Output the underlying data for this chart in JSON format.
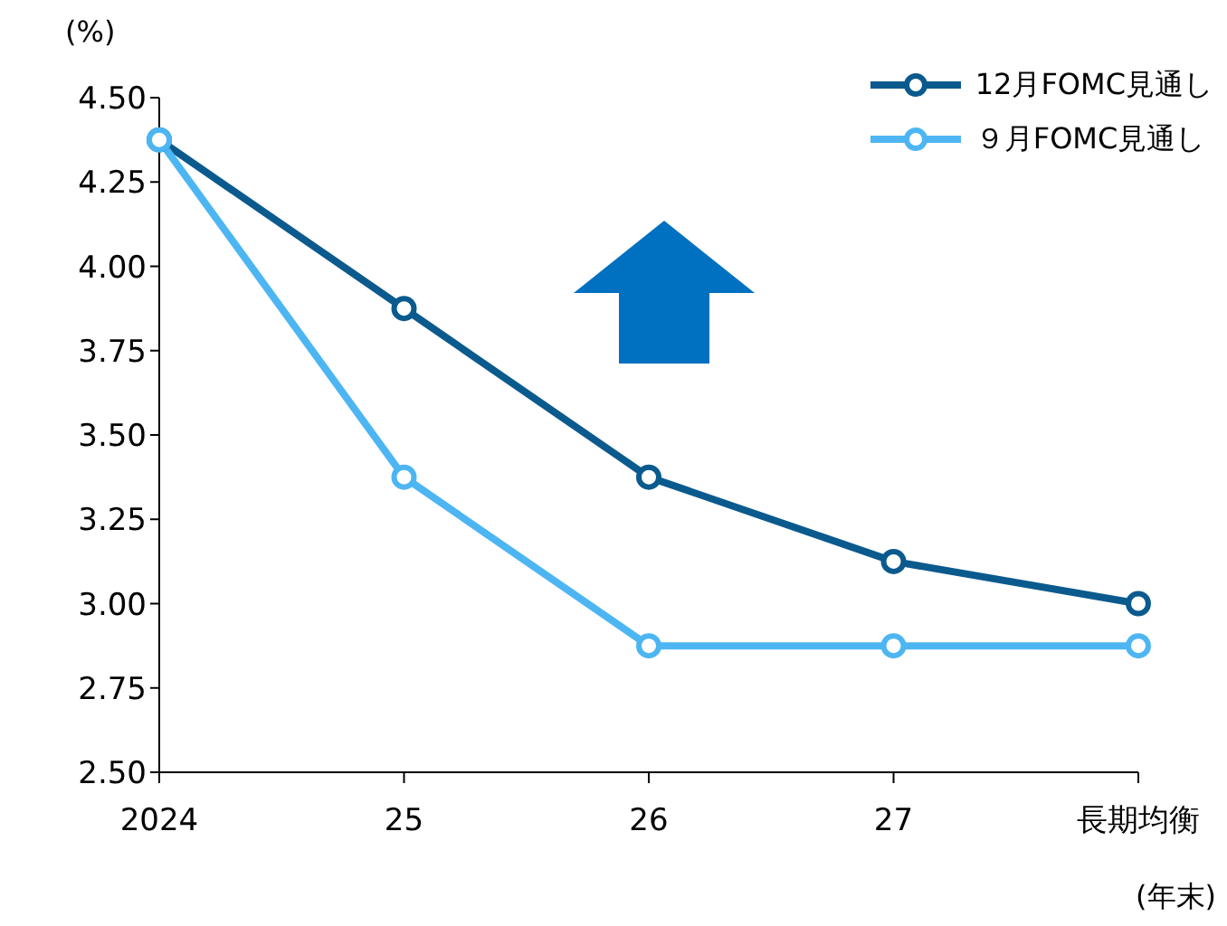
{
  "chart_data": {
    "type": "line",
    "ylabel": "(%)",
    "xlabel": "(年末)",
    "categories": [
      "2024",
      "25",
      "26",
      "27",
      "長期均衡"
    ],
    "series": [
      {
        "name": "12月FOMC見通し",
        "color": "#0b5a8e",
        "values": [
          4.375,
          3.875,
          3.375,
          3.125,
          3.0
        ]
      },
      {
        "name": "９月FOMC見通し",
        "color": "#4db6f2",
        "values": [
          4.375,
          3.375,
          2.875,
          2.875,
          2.875
        ]
      }
    ],
    "ylim": [
      2.5,
      4.5
    ],
    "yticks": [
      {
        "value": 2.5,
        "label": "2.50"
      },
      {
        "value": 2.75,
        "label": "2.75"
      },
      {
        "value": 3.0,
        "label": "3.00"
      },
      {
        "value": 3.25,
        "label": "3.25"
      },
      {
        "value": 3.5,
        "label": "3.50"
      },
      {
        "value": 3.75,
        "label": "3.75"
      },
      {
        "value": 4.0,
        "label": "4.00"
      },
      {
        "value": 4.25,
        "label": "4.25"
      },
      {
        "value": 4.5,
        "label": "4.50"
      }
    ],
    "grid": false,
    "legend": "top right",
    "marker": "circle",
    "line_style": "solid"
  }
}
